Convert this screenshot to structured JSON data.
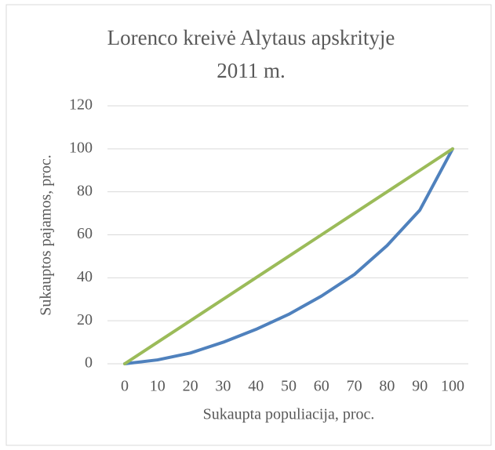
{
  "chart_data": {
    "type": "line",
    "title": [
      "Lorenco kreivė Alytaus apskrityje",
      "2011 m."
    ],
    "x_label": "Sukaupta populiacija, proc.",
    "y_label": "Sukauptos pajamos, proc.",
    "x": [
      0,
      10,
      20,
      30,
      40,
      50,
      60,
      70,
      80,
      90,
      100
    ],
    "series": [
      {
        "color": "#4f81bd",
        "values": [
          0,
          1.8,
          5,
          10,
          16,
          23,
          31.5,
          41.5,
          55,
          71.5,
          100
        ]
      },
      {
        "color": "#9bbb59",
        "values": [
          0,
          10,
          20,
          30,
          40,
          50,
          60,
          70,
          80,
          90,
          100
        ]
      }
    ],
    "xlim": [
      0,
      100
    ],
    "xticks": [
      0,
      10,
      20,
      30,
      40,
      50,
      60,
      70,
      80,
      90,
      100
    ],
    "ylim": [
      0,
      120
    ],
    "yticks": [
      0,
      20,
      40,
      60,
      80,
      100,
      120
    ],
    "grid": true
  }
}
